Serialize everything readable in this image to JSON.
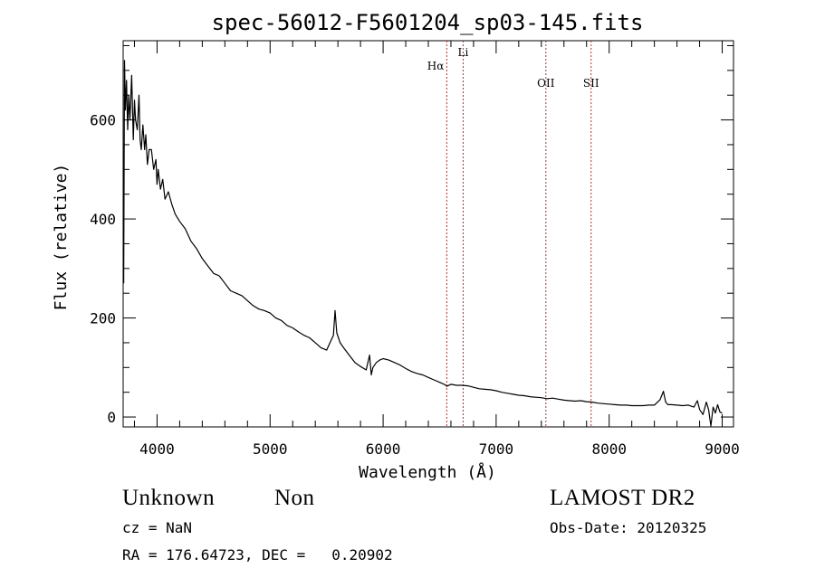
{
  "chart_data": {
    "type": "line",
    "title": "spec-56012-F5601204_sp03-145.fits",
    "xlabel": "Wavelength (Å)",
    "ylabel": "Flux (relative)",
    "xlim": [
      3700,
      9100
    ],
    "ylim": [
      -20,
      760
    ],
    "x_ticks": [
      4000,
      5000,
      6000,
      7000,
      8000,
      9000
    ],
    "y_ticks": [
      0,
      200,
      400,
      600
    ],
    "grid": false,
    "line_color": "#000000",
    "marker_color": "#b03030",
    "series": [
      {
        "x": [
          3705,
          3712,
          3720,
          3730,
          3740,
          3750,
          3760,
          3775,
          3790,
          3800,
          3810,
          3825,
          3840,
          3850,
          3860,
          3875,
          3890,
          3900,
          3915,
          3930,
          3950,
          3970,
          3990,
          4000,
          4010,
          4030,
          4050,
          4070,
          4100,
          4130,
          4160,
          4200,
          4250,
          4300,
          4350,
          4400,
          4450,
          4500,
          4550,
          4600,
          4650,
          4700,
          4750,
          4800,
          4850,
          4900,
          4950,
          5000,
          5050,
          5100,
          5150,
          5200,
          5250,
          5300,
          5350,
          5400,
          5450,
          5500,
          5530,
          5560,
          5575,
          5590,
          5620,
          5650,
          5700,
          5750,
          5800,
          5850,
          5880,
          5895,
          5910,
          5940,
          5970,
          6000,
          6050,
          6100,
          6150,
          6200,
          6250,
          6300,
          6350,
          6400,
          6450,
          6500,
          6550,
          6563,
          6600,
          6650,
          6700,
          6750,
          6800,
          6850,
          6900,
          6950,
          7000,
          7050,
          7100,
          7150,
          7200,
          7250,
          7300,
          7350,
          7400,
          7450,
          7500,
          7550,
          7600,
          7650,
          7700,
          7750,
          7800,
          7850,
          7900,
          7950,
          8000,
          8050,
          8100,
          8150,
          8200,
          8250,
          8300,
          8350,
          8400,
          8450,
          8480,
          8500,
          8520,
          8550,
          8600,
          8650,
          8700,
          8750,
          8780,
          8800,
          8830,
          8860,
          8880,
          8900,
          8920,
          8940,
          8960,
          8980,
          9000
        ],
        "y": [
          270,
          720,
          620,
          680,
          580,
          650,
          600,
          690,
          560,
          640,
          600,
          580,
          650,
          560,
          540,
          590,
          540,
          570,
          510,
          540,
          540,
          500,
          520,
          470,
          500,
          460,
          480,
          440,
          455,
          430,
          410,
          395,
          380,
          355,
          340,
          320,
          305,
          290,
          285,
          270,
          255,
          250,
          245,
          235,
          225,
          218,
          215,
          210,
          200,
          195,
          185,
          180,
          172,
          165,
          160,
          150,
          140,
          135,
          150,
          165,
          215,
          170,
          150,
          140,
          125,
          110,
          102,
          95,
          125,
          85,
          100,
          110,
          115,
          118,
          115,
          110,
          105,
          98,
          92,
          88,
          85,
          80,
          75,
          70,
          65,
          62,
          66,
          64,
          64,
          63,
          60,
          57,
          56,
          55,
          53,
          50,
          48,
          46,
          44,
          43,
          41,
          40,
          39,
          37,
          38,
          36,
          34,
          33,
          32,
          33,
          31,
          30,
          28,
          27,
          26,
          25,
          24,
          24,
          23,
          23,
          23,
          24,
          24,
          35,
          52,
          30,
          25,
          25,
          24,
          23,
          24,
          20,
          33,
          15,
          5,
          30,
          15,
          -18,
          20,
          8,
          25,
          10,
          8
        ]
      }
    ],
    "line_markers": [
      {
        "label": "Hα",
        "wavelength": 6563
      },
      {
        "label": "Li",
        "wavelength": 6708
      },
      {
        "label": "OII",
        "wavelength": 7440
      },
      {
        "label": "SII",
        "wavelength": 7840
      }
    ]
  },
  "info": {
    "class": "Unknown",
    "subclass": "Non",
    "survey": "LAMOST DR2",
    "cz": "cz = NaN",
    "obs_date": "Obs-Date: 20120325",
    "radec": "RA = 176.64723, DEC =   0.20902"
  }
}
